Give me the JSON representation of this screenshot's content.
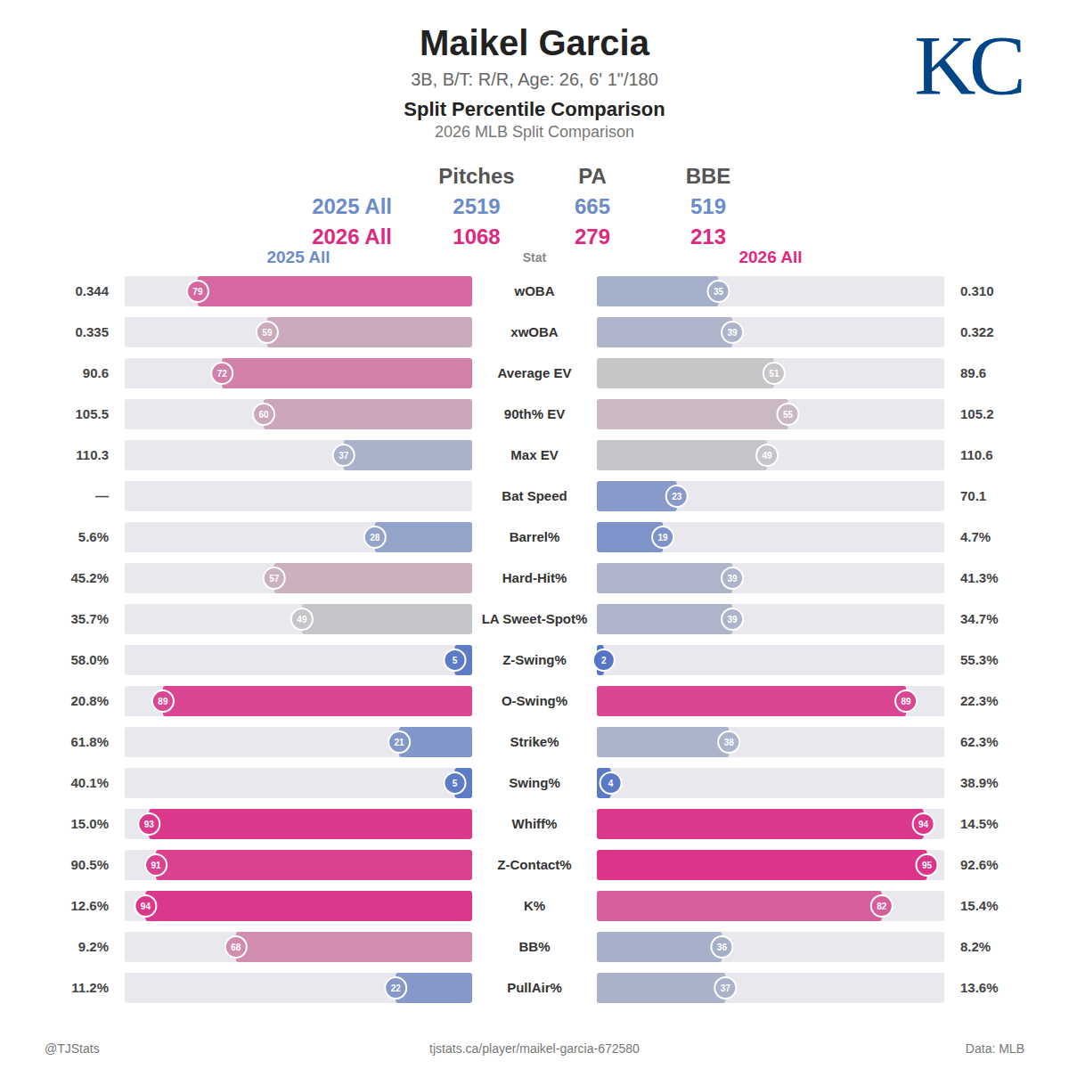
{
  "header": {
    "title": "Maikel Garcia",
    "subtitle": "3B, B/T: R/R, Age: 26, 6' 1\"/180",
    "heading": "Split Percentile Comparison",
    "subheading": "2026 MLB Split Comparison",
    "logo": "KC"
  },
  "summary": {
    "columns": [
      "Pitches",
      "PA",
      "BBE"
    ],
    "rows": [
      {
        "label": "2025 All",
        "color": "#6b8cc8",
        "values": [
          2519,
          665,
          519
        ]
      },
      {
        "label": "2026 All",
        "color": "#dd2a80",
        "values": [
          1068,
          279,
          213
        ]
      }
    ]
  },
  "chart_data": {
    "type": "bar",
    "orientation": "horizontal",
    "stat_header": "Stat",
    "xlim": [
      0,
      100
    ],
    "tick_labels": false,
    "data_labels": true,
    "categories": [
      "wOBA",
      "xwOBA",
      "Average EV",
      "90th% EV",
      "Max EV",
      "Bat Speed",
      "Barrel%",
      "Hard-Hit%",
      "LA Sweet-Spot%",
      "Z-Swing%",
      "O-Swing%",
      "Strike%",
      "Swing%",
      "Whiff%",
      "Z-Contact%",
      "K%",
      "BB%",
      "PullAir%"
    ],
    "series": [
      {
        "name": "2025 All",
        "values": [
          79,
          59,
          72,
          60,
          37,
          null,
          28,
          57,
          49,
          5,
          89,
          21,
          5,
          93,
          91,
          94,
          68,
          22
        ],
        "stat_values": [
          "0.344",
          "0.335",
          "90.6",
          "105.5",
          "110.3",
          "—",
          "5.6%",
          "45.2%",
          "35.7%",
          "58.0%",
          "20.8%",
          "61.8%",
          "40.1%",
          "15.0%",
          "90.5%",
          "12.6%",
          "9.2%",
          "11.2%"
        ]
      },
      {
        "name": "2026 All",
        "values": [
          35,
          39,
          51,
          55,
          49,
          23,
          19,
          39,
          39,
          2,
          89,
          38,
          4,
          94,
          95,
          82,
          36,
          37
        ],
        "stat_values": [
          "0.310",
          "0.322",
          "89.6",
          "105.2",
          "110.6",
          "70.1",
          "4.7%",
          "41.3%",
          "34.7%",
          "55.3%",
          "22.3%",
          "62.3%",
          "38.9%",
          "14.5%",
          "92.6%",
          "15.4%",
          "8.2%",
          "13.6%"
        ]
      }
    ]
  },
  "footer": {
    "left": "@TJStats",
    "center": "tjstats.ca/player/maikel-garcia-672580",
    "right": "Data: MLB"
  }
}
